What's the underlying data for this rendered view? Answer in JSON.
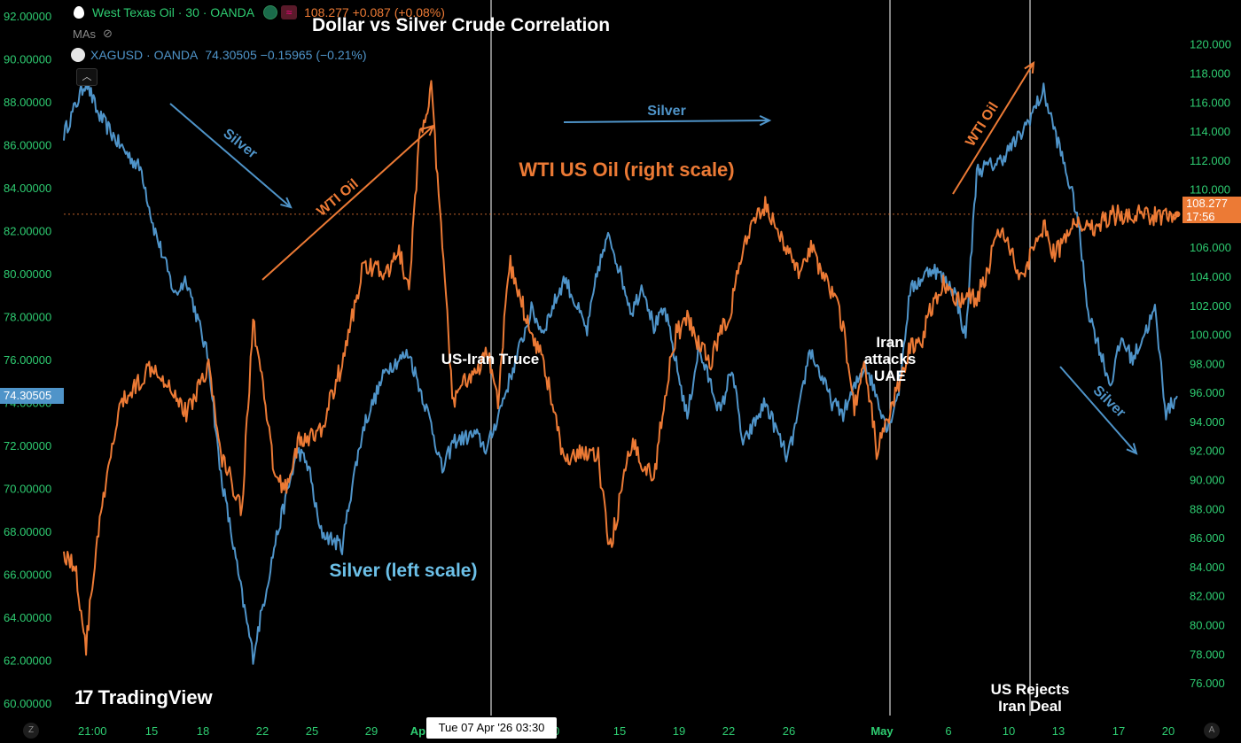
{
  "header": {
    "title": "Dollar vs Silver Crude Correlation",
    "oil_symbol": "West Texas Oil · 30 · OANDA",
    "oil_quote": "108.277 +0.087 (+0.08%)",
    "mas_label": "MAs",
    "silver_symbol": "XAGUSD · OANDA",
    "silver_quote": "74.30505 −0.15965 (−0.21%)"
  },
  "branding": {
    "logo_text": "TradingView",
    "logo_mark": "17"
  },
  "crosshair": {
    "date_label": "Tue 07 Apr '26  03:30"
  },
  "price_tags": {
    "left_current": "74.30505",
    "right_current": "108.277",
    "right_countdown": "17:56"
  },
  "corner_buttons": {
    "left": "Z",
    "right": "A"
  },
  "colors": {
    "silver": "#4f94c9",
    "oil": "#ec7a35",
    "axis_text": "#2ecc71",
    "background": "#000000",
    "vertical_lines": "#d9d9d9"
  },
  "chart_data": {
    "type": "line",
    "title": "Dollar vs Silver Crude Correlation",
    "x_ticks": [
      "21:00",
      "15",
      "18",
      "22",
      "25",
      "29",
      "Apr",
      "10",
      "15",
      "19",
      "22",
      "26",
      "May",
      "6",
      "10",
      "13",
      "17",
      "20"
    ],
    "left_axis": {
      "ticks": [
        "92.00000",
        "90.00000",
        "88.00000",
        "86.00000",
        "84.00000",
        "82.00000",
        "80.00000",
        "78.00000",
        "76.00000",
        "74.00000",
        "72.00000",
        "70.00000",
        "68.00000",
        "66.00000",
        "64.00000",
        "62.00000",
        "60.00000"
      ],
      "ylim": [
        60,
        92
      ]
    },
    "right_axis": {
      "ticks": [
        "120.000",
        "118.000",
        "116.000",
        "114.000",
        "112.000",
        "110.000",
        "108.000",
        "106.000",
        "104.000",
        "102.000",
        "100.000",
        "98.000",
        "96.000",
        "94.000",
        "92.000",
        "90.000",
        "88.000",
        "86.000",
        "84.000",
        "82.000",
        "80.000",
        "78.000",
        "76.000"
      ],
      "ylim": [
        74.6,
        121.2
      ]
    },
    "series": [
      {
        "name": "XAGUSD · OANDA",
        "axis": "left",
        "color": "#4f94c9",
        "x": [
          0,
          2,
          3,
          5,
          7,
          8,
          10,
          11,
          13,
          14,
          16,
          17,
          19,
          21,
          22,
          23,
          25,
          26,
          27,
          29,
          31,
          33,
          34,
          35,
          37,
          38,
          40,
          42,
          43,
          45,
          47,
          48,
          49,
          51,
          52,
          53,
          54,
          56,
          57,
          59,
          60,
          61,
          63,
          65,
          66,
          67,
          69,
          70,
          72,
          74,
          75,
          76,
          78,
          80,
          81,
          82,
          84,
          86,
          88,
          90,
          91,
          92,
          94,
          95,
          96,
          98,
          99,
          100
        ],
        "y": [
          86.5,
          89,
          87.5,
          86,
          84.8,
          82.3,
          79,
          79.8,
          76,
          71,
          65,
          62.2,
          67.5,
          71.8,
          71,
          68,
          67.3,
          70.5,
          73,
          75.6,
          76.3,
          73,
          70.8,
          72.2,
          72.5,
          71.8,
          75,
          78.3,
          77.3,
          79.8,
          77.3,
          80.3,
          81.8,
          78.2,
          79.5,
          77.5,
          78.3,
          73.3,
          76.5,
          73.5,
          75.7,
          72,
          74,
          71.4,
          73.5,
          76.5,
          74,
          73.5,
          75.8,
          72.8,
          74.6,
          79.2,
          80.3,
          79.2,
          77,
          84.8,
          85.2,
          86.5,
          88.5,
          84.8,
          82.8,
          78.3,
          74.8,
          77,
          76,
          78.3,
          73.5,
          74.3
        ]
      },
      {
        "name": "West Texas Oil · 30 · OANDA",
        "axis": "right",
        "color": "#ec7a35",
        "x": [
          0,
          1,
          2,
          3,
          5,
          7,
          8,
          10,
          11,
          13,
          14,
          16,
          17,
          19,
          20,
          21,
          23,
          25,
          26,
          27,
          29,
          30,
          31,
          32,
          33,
          35,
          36,
          37,
          38,
          39,
          40,
          42,
          43,
          45,
          47,
          48,
          49,
          51,
          53,
          54,
          55,
          56,
          58,
          60,
          61,
          63,
          64,
          65,
          66,
          67,
          69,
          70,
          71,
          72,
          73,
          74,
          76,
          77,
          78,
          79,
          80,
          81,
          82,
          83,
          84,
          86,
          88,
          89,
          90,
          91,
          92,
          94,
          96,
          98,
          99,
          100
        ],
        "y": [
          85,
          84,
          78.5,
          86,
          95,
          97,
          98,
          96,
          94.5,
          98,
          92,
          88,
          101,
          90,
          89.5,
          92.5,
          93.2,
          98,
          101.5,
          105,
          104,
          106,
          103,
          114,
          116.8,
          95,
          97,
          97,
          99,
          95,
          105,
          100,
          98.5,
          91,
          92,
          91.5,
          85,
          92.5,
          90,
          96,
          100,
          101,
          98,
          102,
          106,
          109,
          107.5,
          105.5,
          104.5,
          106,
          103,
          100.5,
          94.8,
          98,
          92,
          94,
          99,
          99.5,
          102,
          103.5,
          102.5,
          102.5,
          102.5,
          104.5,
          107.5,
          104,
          107.5,
          105.5,
          106.5,
          108,
          107.2,
          108.2,
          108.3,
          108.2,
          108.25,
          108.277
        ]
      }
    ],
    "vertical_lines": [
      "Apr 7",
      "May 1",
      "May 11"
    ],
    "annotations": [
      {
        "text": "WTI US Oil (right scale)",
        "color": "#ec7a35"
      },
      {
        "text": "Silver (left scale)",
        "color": "#6cc0e8"
      },
      {
        "text": "US-Iran Truce",
        "color": "#ffffff"
      },
      {
        "text": "Iran attacks UAE",
        "color": "#ffffff"
      },
      {
        "text": "US Rejects Iran Deal",
        "color": "#ffffff"
      },
      {
        "text": "Silver",
        "color": "#4f94c9"
      },
      {
        "text": "WTI Oil",
        "color": "#ec7a35"
      }
    ],
    "reference_line": {
      "axis": "right",
      "value": 108.277
    },
    "grid": false,
    "legend": "top-left"
  }
}
